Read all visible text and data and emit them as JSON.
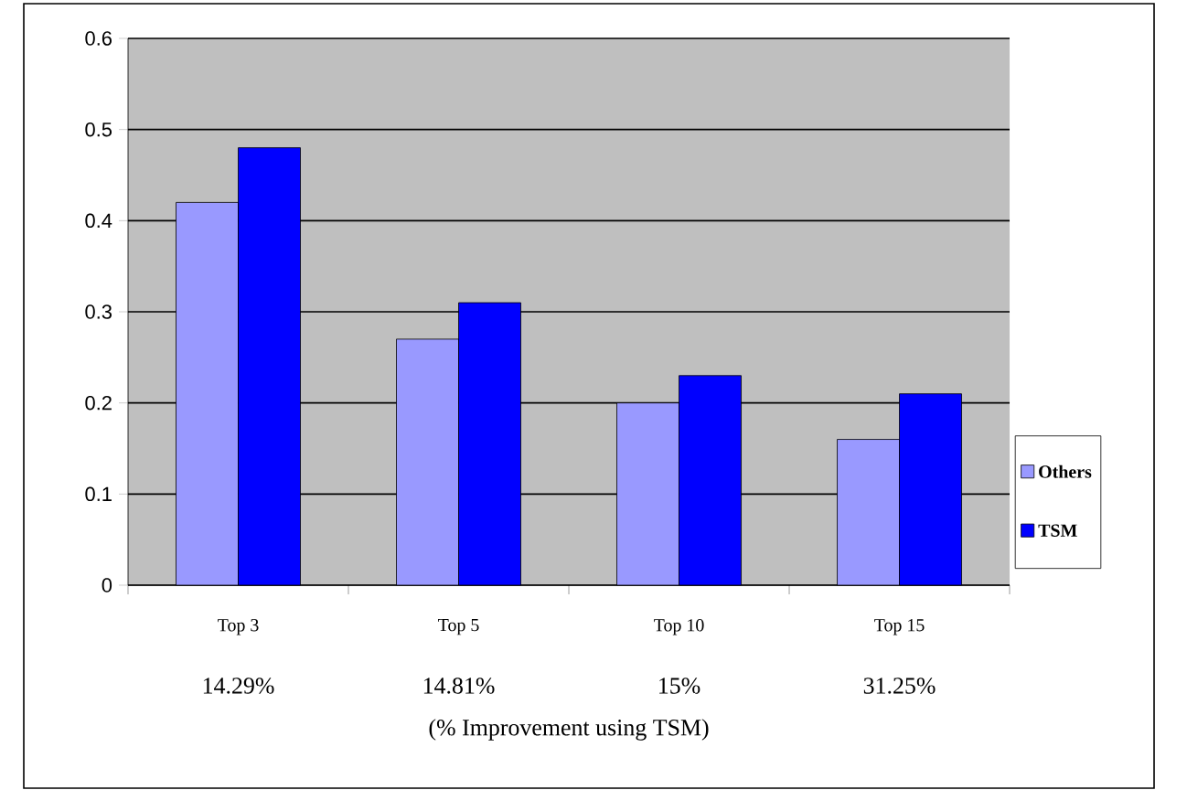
{
  "chart_data": {
    "type": "bar",
    "categories": [
      "Top 3",
      "Top 5",
      "Top 10",
      "Top 15"
    ],
    "series": [
      {
        "name": "Others",
        "color": "#9999ff",
        "values": [
          0.42,
          0.27,
          0.2,
          0.16
        ]
      },
      {
        "name": "TSM",
        "color": "#0000ff",
        "values": [
          0.48,
          0.31,
          0.23,
          0.21
        ]
      }
    ],
    "ylim": [
      0,
      0.6
    ],
    "yticks": [
      0,
      0.1,
      0.2,
      0.3,
      0.4,
      0.5,
      0.6
    ],
    "grid": "y",
    "legend": "right",
    "annotations": [
      "14.29%",
      "14.81%",
      "15%",
      "31.25%"
    ],
    "xlabel": "(% Improvement using TSM)"
  }
}
